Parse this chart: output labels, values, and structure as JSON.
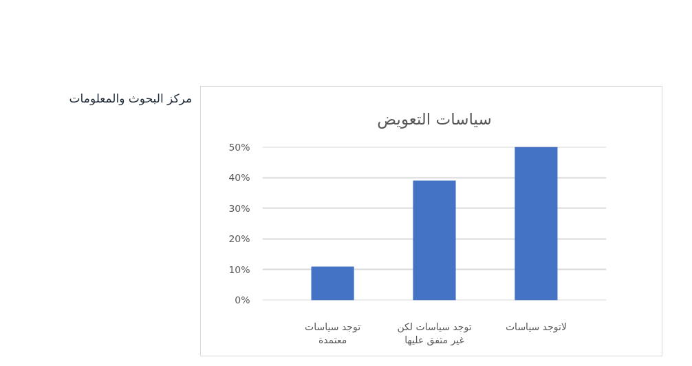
{
  "chart_data": {
    "type": "bar",
    "title": "سياسات التعويض",
    "categories": [
      "توجد سياسات معتمدة",
      "توجد سياسات لكن غير متفق عليها",
      "لاتوجد سياسات"
    ],
    "values": [
      11,
      39,
      50
    ],
    "color": "#4472c4",
    "ylim": [
      0,
      50
    ],
    "yticks": [
      {
        "value": 0,
        "label": "0%"
      },
      {
        "value": 10,
        "label": "10%"
      },
      {
        "value": 20,
        "label": "20%"
      },
      {
        "value": 30,
        "label": "30%"
      },
      {
        "value": 40,
        "label": "40%"
      },
      {
        "value": 50,
        "label": "50%"
      }
    ],
    "grid": "y",
    "annotations": [
      "مركز البحوث والمعلومات"
    ]
  }
}
